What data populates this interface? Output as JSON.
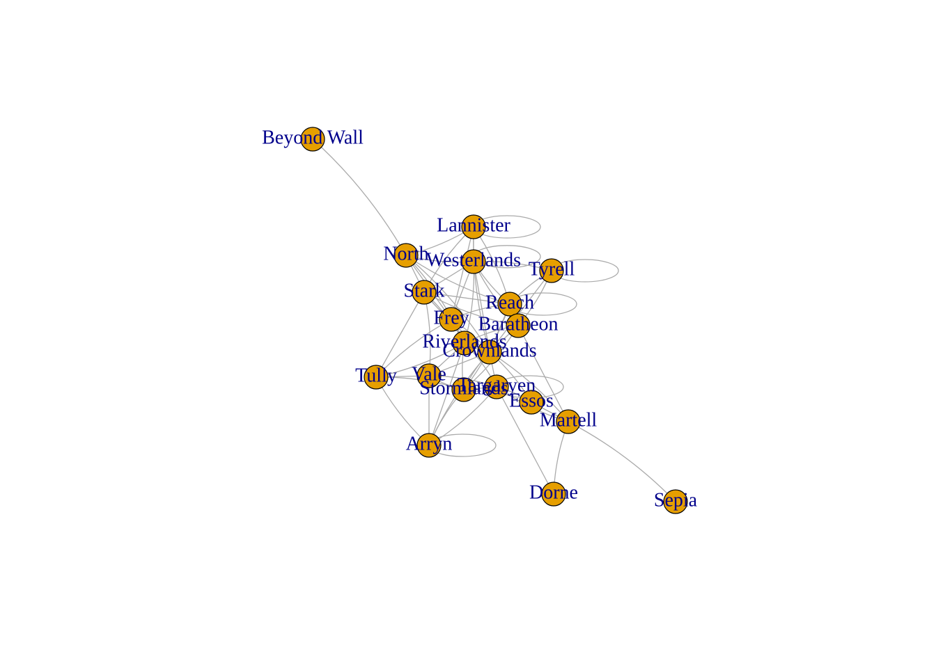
{
  "graph": {
    "node_color": "#E69F00",
    "label_color": "#00008B",
    "edge_color": "#AAAAAA",
    "nodes": [
      {
        "id": "beyond_wall",
        "label": "Beyond Wall"
      },
      {
        "id": "lannister",
        "label": "Lannister"
      },
      {
        "id": "north",
        "label": "North"
      },
      {
        "id": "westerlands",
        "label": "Westerlands"
      },
      {
        "id": "tyrell",
        "label": "Tyrell"
      },
      {
        "id": "stark",
        "label": "Stark"
      },
      {
        "id": "reach",
        "label": "Reach"
      },
      {
        "id": "frey",
        "label": "Frey"
      },
      {
        "id": "baratheon",
        "label": "Baratheon"
      },
      {
        "id": "riverlands",
        "label": "Riverlands"
      },
      {
        "id": "crownlands",
        "label": "Crownlands"
      },
      {
        "id": "tully",
        "label": "Tully"
      },
      {
        "id": "vale",
        "label": "Vale"
      },
      {
        "id": "stormlands",
        "label": "Stormlands"
      },
      {
        "id": "targaryen",
        "label": "Targaryen"
      },
      {
        "id": "essos",
        "label": "Essos"
      },
      {
        "id": "martell",
        "label": "Martell"
      },
      {
        "id": "arryn",
        "label": "Arryn"
      },
      {
        "id": "dorne",
        "label": "Dorne"
      },
      {
        "id": "sepia",
        "label": "Sepia"
      }
    ],
    "edges": [
      [
        "beyond_wall",
        "north"
      ],
      [
        "north",
        "stark"
      ],
      [
        "north",
        "westerlands"
      ],
      [
        "north",
        "riverlands"
      ],
      [
        "north",
        "frey"
      ],
      [
        "north",
        "reach"
      ],
      [
        "north",
        "crownlands"
      ],
      [
        "lannister",
        "westerlands"
      ],
      [
        "lannister",
        "stark"
      ],
      [
        "lannister",
        "reach"
      ],
      [
        "lannister",
        "frey"
      ],
      [
        "lannister",
        "crownlands"
      ],
      [
        "lannister",
        "north"
      ],
      [
        "westerlands",
        "stark"
      ],
      [
        "westerlands",
        "reach"
      ],
      [
        "westerlands",
        "riverlands"
      ],
      [
        "westerlands",
        "crownlands"
      ],
      [
        "westerlands",
        "baratheon"
      ],
      [
        "westerlands",
        "tyrell"
      ],
      [
        "westerlands",
        "frey"
      ],
      [
        "tyrell",
        "reach"
      ],
      [
        "tyrell",
        "baratheon"
      ],
      [
        "tyrell",
        "crownlands"
      ],
      [
        "stark",
        "frey"
      ],
      [
        "stark",
        "riverlands"
      ],
      [
        "stark",
        "tully"
      ],
      [
        "stark",
        "crownlands"
      ],
      [
        "stark",
        "vale"
      ],
      [
        "stark",
        "reach"
      ],
      [
        "stark",
        "baratheon"
      ],
      [
        "reach",
        "baratheon"
      ],
      [
        "reach",
        "crownlands"
      ],
      [
        "reach",
        "frey"
      ],
      [
        "reach",
        "stormlands"
      ],
      [
        "frey",
        "riverlands"
      ],
      [
        "frey",
        "tully"
      ],
      [
        "frey",
        "crownlands"
      ],
      [
        "baratheon",
        "crownlands"
      ],
      [
        "baratheon",
        "riverlands"
      ],
      [
        "baratheon",
        "stormlands"
      ],
      [
        "baratheon",
        "martell"
      ],
      [
        "riverlands",
        "crownlands"
      ],
      [
        "riverlands",
        "tully"
      ],
      [
        "riverlands",
        "vale"
      ],
      [
        "riverlands",
        "stormlands"
      ],
      [
        "riverlands",
        "targaryen"
      ],
      [
        "crownlands",
        "targaryen"
      ],
      [
        "crownlands",
        "stormlands"
      ],
      [
        "crownlands",
        "essos"
      ],
      [
        "crownlands",
        "vale"
      ],
      [
        "crownlands",
        "arryn"
      ],
      [
        "crownlands",
        "martell"
      ],
      [
        "tully",
        "vale"
      ],
      [
        "tully",
        "arryn"
      ],
      [
        "tully",
        "stormlands"
      ],
      [
        "vale",
        "arryn"
      ],
      [
        "vale",
        "stormlands"
      ],
      [
        "vale",
        "targaryen"
      ],
      [
        "stormlands",
        "targaryen"
      ],
      [
        "stormlands",
        "arryn"
      ],
      [
        "targaryen",
        "essos"
      ],
      [
        "targaryen",
        "dorne"
      ],
      [
        "targaryen",
        "martell"
      ],
      [
        "targaryen",
        "arryn"
      ],
      [
        "essos",
        "martell"
      ],
      [
        "martell",
        "dorne"
      ],
      [
        "martell",
        "sepia"
      ],
      [
        "arryn",
        "riverlands"
      ]
    ],
    "self_loops": [
      "lannister",
      "westerlands",
      "tyrell",
      "reach",
      "arryn",
      "targaryen"
    ]
  }
}
